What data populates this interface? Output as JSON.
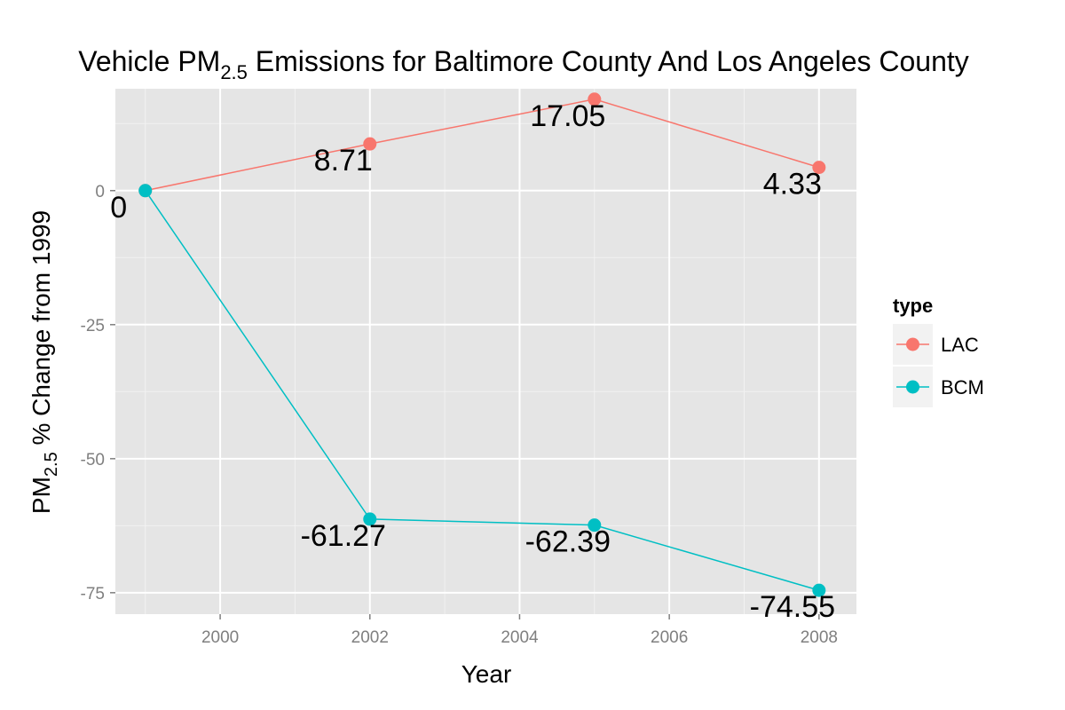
{
  "chart_data": {
    "type": "line",
    "title_prefix": "Vehicle PM",
    "title_subscript": "2.5",
    "title_suffix": " Emissions for Baltimore County And Los Angeles County",
    "xlabel": "Year",
    "ylabel_prefix": "PM",
    "ylabel_subscript": "2.5",
    "ylabel_suffix": " % Change from 1999",
    "xlim": [
      1998.6,
      2008.5
    ],
    "ylim": [
      -79,
      19
    ],
    "x_ticks": [
      2000,
      2002,
      2004,
      2006,
      2008
    ],
    "y_ticks": [
      0,
      -25,
      -50,
      -75
    ],
    "x_tick_labels": [
      "2000",
      "2002",
      "2004",
      "2006",
      "2008"
    ],
    "y_tick_labels": [
      "0",
      "-25",
      "-50",
      "-75"
    ],
    "grid": true,
    "legend": {
      "title": "type",
      "position": "right"
    },
    "series": [
      {
        "name": "LAC",
        "color": "#F8766D",
        "x": [
          1999,
          2002,
          2005,
          2008
        ],
        "y": [
          0,
          8.71,
          17.05,
          4.33
        ],
        "labels": [
          "0",
          "8.71",
          "17.05",
          "4.33"
        ]
      },
      {
        "name": "BCM",
        "color": "#00BFC4",
        "x": [
          1999,
          2002,
          2005,
          2008
        ],
        "y": [
          0,
          -61.27,
          -62.39,
          -74.55
        ],
        "labels": [
          "0",
          "-61.27",
          "-62.39",
          "-74.55"
        ]
      }
    ]
  }
}
